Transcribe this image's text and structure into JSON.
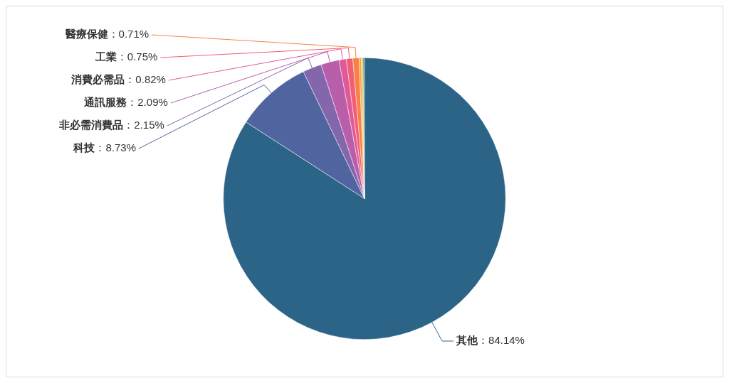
{
  "chart_data": {
    "type": "pie",
    "categories": [
      "其他",
      "科技",
      "非必需消費品",
      "通訊服務",
      "消費必需品",
      "工業",
      "醫療保健",
      null,
      null,
      null
    ],
    "values": [
      84.14,
      8.73,
      2.15,
      2.09,
      0.82,
      0.75,
      0.71,
      0.25,
      0.2,
      0.16
    ],
    "value_labels": [
      "：84.14%",
      "：8.73%",
      "：2.15%",
      "：2.09%",
      "：0.82%",
      "：0.75%",
      "：0.71%",
      null,
      null,
      null
    ],
    "colors": [
      "#2c6488",
      "#50659f",
      "#8466ad",
      "#b95fa9",
      "#e05a9a",
      "#f25f73",
      "#f98047",
      "#f9a63a",
      "#e8c840",
      "#3d7f8f"
    ],
    "legend": false
  }
}
